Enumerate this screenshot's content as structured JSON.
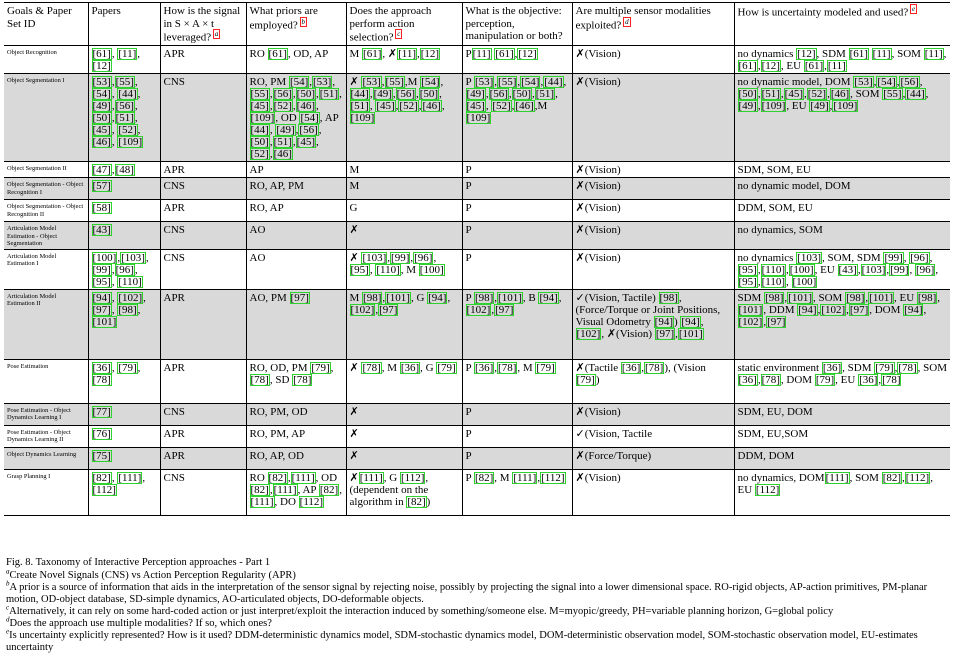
{
  "header": {
    "col0": "Goals & Paper Set ID",
    "col1": "Papers",
    "col2": "How is the signal in S × A × t leveraged?",
    "col2_fn": "a",
    "col3": "What priors are employed?",
    "col3_fn": "b",
    "col4": "Does the approach perform action selection?",
    "col4_fn": "c",
    "col5": "What is the objective: perception, manipulation or both?",
    "col6": "Are multiple sensor modalities exploited?",
    "col6_fn": "d",
    "col7": "How is uncertainty modeled and used?",
    "col7_fn": "e"
  },
  "rows": [
    {
      "goal": "Object Recognition",
      "papers": "[61], [11],[12]",
      "signal": "APR",
      "priors": "RO [61], OD, AP",
      "action": "M [61], ✗[11],[12]",
      "objective": "P[11] [61],[12]",
      "modalities": "✗(Vision)",
      "uncertainty": "no dynamics [12], SDM [61] [11], SOM [11],[61],[12], EU [61],[11]"
    },
    {
      "goal": "Object Segmentation I",
      "papers": "[53],[55],[54], [44],[49],[56], [50],[51],[45], [52],[46], [109]",
      "signal": "CNS",
      "priors": "RO, PM [54],[53], [55],[56],[50],[51], [45],[52],[46],[109], OD [54], AP [44], [49],[56],[50],[51],[45], [52],[46]",
      "action": "✗ [53],[55],M [54], [44],[49],[56],[50],[51], [45],[52],[46],[109]",
      "objective": "P [53],[55],[54],[44], [49],[56],[50],[51],[45], [52],[46],M [109]",
      "modalities": "✗(Vision)",
      "uncertainty": "no dynamic model, DOM [53],[54],[56], [50],[51],[45],[52],[46], SOM [55],[44], [49],[109], EU [49],[109]"
    },
    {
      "goal": "Object Segmentation II",
      "papers": "[47],[48]",
      "signal": "APR",
      "priors": "AP",
      "action": "M",
      "objective": "P",
      "modalities": "✗(Vision)",
      "uncertainty": "SDM, SOM, EU"
    },
    {
      "goal": "Object Segmentation - Object Recognition I",
      "papers": "[57]",
      "signal": "CNS",
      "priors": "RO, AP, PM",
      "action": "M",
      "objective": "P",
      "modalities": "✗(Vision)",
      "uncertainty": "no dynamic model, DOM"
    },
    {
      "goal": "Object Segmentation - Object Recognition II",
      "papers": "[58]",
      "signal": "APR",
      "priors": "RO, AP",
      "action": "G",
      "objective": "P",
      "modalities": "✗(Vision)",
      "uncertainty": "DDM, SOM, EU"
    },
    {
      "goal": "Articulation Model Estimation - Object Segmentation",
      "papers": "[43]",
      "signal": "CNS",
      "priors": "AO",
      "action": "✗",
      "objective": "P",
      "modalities": "✗(Vision)",
      "uncertainty": "no dynamics, SOM"
    },
    {
      "goal": "Articulation Model Estimation I",
      "papers": "[100],[103], [99],[96],[95], [110]",
      "signal": "CNS",
      "priors": "AO",
      "action": "✗ [103],[99],[96],[95], [110], M [100]",
      "objective": "P",
      "modalities": "✗(Vision)",
      "uncertainty": "no dynamics [103], SOM, SDM [99], [96],[95],[110],[100], EU [43],[103],[99], [96],[95],[110], [100]"
    },
    {
      "goal": "Articulation Model Estimation II",
      "papers": "[94], [102], [97], [98], [101]",
      "signal": "APR",
      "priors": "AO, PM [97]",
      "action": "M [98],[101], G [94], [102],[97]",
      "objective": "P [98],[101], B [94], [102],[97]",
      "modalities": "✓(Vision, Tactile) [98], (Force/Torque or Joint Positions, Visual Odometry [94]) [94],[102], ✗(Vision) [97],[101]",
      "uncertainty": "SDM [98],[101], SOM [98],[101], EU [98],[101], DDM [94],[102],[97], DOM [94],[102],[97]"
    },
    {
      "goal": "Pose Estimation",
      "papers": "[36], [79],[78]",
      "signal": "APR",
      "priors": "RO, OD, PM [79],[78], SD [78]",
      "action": "✗ [78], M [36], G [79]",
      "objective": "P [36],[78], M [79]",
      "modalities": "✗(Tactile [36],[78]), (Vision [79])",
      "uncertainty": "static environment [36], SDM [79],[78], SOM [36],[78], DOM [79], EU [36],[78]"
    },
    {
      "goal": "Pose Estimation - Object Dynamics Learning I",
      "papers": "[77]",
      "signal": "CNS",
      "priors": "RO, PM, OD",
      "action": "✗",
      "objective": "P",
      "modalities": "✗(Vision)",
      "uncertainty": "SDM, EU, DOM"
    },
    {
      "goal": "Pose Estimation - Object Dynamics Learning II",
      "papers": "[76]",
      "signal": "APR",
      "priors": "RO, PM, AP",
      "action": "✗",
      "objective": "P",
      "modalities": "✓(Vision, Tactile",
      "uncertainty": "SDM, EU,SOM"
    },
    {
      "goal": "Object Dynamics Learning",
      "papers": "[75]",
      "signal": "APR",
      "priors": "RO, AP, OD",
      "action": "✗",
      "objective": "P",
      "modalities": "✗(Force/Torque)",
      "uncertainty": "DDM, DOM"
    },
    {
      "goal": "Grasp Planning I",
      "papers": "[82], [111], [112]",
      "signal": "CNS",
      "priors": "RO [82],[111], OD [82],[111], AP [82],[111], DO [112]",
      "action": "✗[111], G [112],(dependent on the algorithm in [82])",
      "objective": "P [82], M [111],[112]",
      "modalities": "✗(Vision)",
      "uncertainty": "no dynamics, DOM[111], SOM [82],[112], EU [112]"
    }
  ],
  "caption": {
    "figure": "Fig. 8.   Taxonomy of Interactive Perception approaches - Part 1",
    "notes": [
      {
        "mark": "a",
        "text": "Create Novel Signals (CNS) vs Action Perception Regularity (APR)"
      },
      {
        "mark": "b",
        "text": "A prior is a source of information that aids in the interpretation of the sensor signal by rejecting noise, possibly by projecting the signal into a lower dimensional space. RO-rigid objects, AP-action primitives, PM-planar motion, OD-object database, SD-simple dynamics, AO-articulated objects, DO-deformable objects."
      },
      {
        "mark": "c",
        "text": "Alternatively, it can rely on some hard-coded action or just interpret/exploit the interaction induced by something/someone else. M=myopic/greedy, PH=variable planning horizon, G=global policy"
      },
      {
        "mark": "d",
        "text": "Does the approach use multiple modalities? If so, which ones?"
      },
      {
        "mark": "e",
        "text": "Is uncertainty explicitly represented? How is it used? DDM-deterministic dynamics model, SDM-stochastic dynamics model, DOM-deterministic observation model, SOM-stochastic observation model, EU-estimates uncertainty"
      }
    ]
  }
}
